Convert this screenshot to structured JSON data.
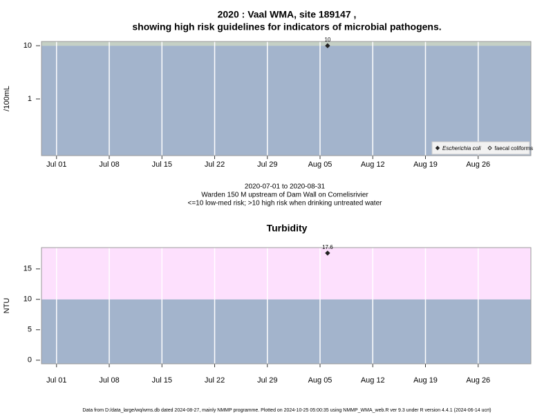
{
  "chart_data": [
    {
      "type": "scatter",
      "title": [
        "2020 : Vaal WMA, site 189147 ,",
        "showing high risk guidelines for indicators of microbial pathogens."
      ],
      "ylabel": "/100mL",
      "ylog": true,
      "ylim": [
        0.086,
        12
      ],
      "yticks": [
        1,
        10
      ],
      "xlim": [
        "2020-06-29",
        "2020-09-02"
      ],
      "xticks": [
        {
          "value": "2020-07-01",
          "label": "Jul 01"
        },
        {
          "value": "2020-07-08",
          "label": "Jul 08"
        },
        {
          "value": "2020-07-15",
          "label": "Jul 15"
        },
        {
          "value": "2020-07-22",
          "label": "Jul 22"
        },
        {
          "value": "2020-07-29",
          "label": "Jul 29"
        },
        {
          "value": "2020-08-05",
          "label": "Aug 05"
        },
        {
          "value": "2020-08-12",
          "label": "Aug 12"
        },
        {
          "value": "2020-08-19",
          "label": "Aug 19"
        },
        {
          "value": "2020-08-26",
          "label": "Aug 26"
        }
      ],
      "threshold": 10,
      "band_colors": [
        "#a3b4cc",
        "#c5d0c5"
      ],
      "grid": true,
      "legend": "bottom-right",
      "x": [
        "2020-08-06"
      ],
      "series": [
        {
          "name": "Escherichia coli",
          "color": "#222222",
          "marker": "filled",
          "values": [
            10
          ]
        },
        {
          "name": "faecal coliforms",
          "color": "#222222",
          "marker": "open",
          "values": [
            null
          ]
        }
      ],
      "caption": [
        "2020-07-01 to 2020-08-31",
        "Warden 150 M upstream of Dam Wall on Cornelisrivier",
        "<=10 low-med risk; >10 high risk when drinking untreated water"
      ]
    },
    {
      "type": "scatter",
      "title": [
        "Turbidity"
      ],
      "ylabel": "NTU",
      "ylog": false,
      "ylim": [
        -0.6,
        18.5
      ],
      "yticks": [
        0,
        5,
        10,
        15
      ],
      "xlim": [
        "2020-06-29",
        "2020-09-02"
      ],
      "xticks": [
        {
          "value": "2020-07-01",
          "label": "Jul 01"
        },
        {
          "value": "2020-07-08",
          "label": "Jul 08"
        },
        {
          "value": "2020-07-15",
          "label": "Jul 15"
        },
        {
          "value": "2020-07-22",
          "label": "Jul 22"
        },
        {
          "value": "2020-07-29",
          "label": "Jul 29"
        },
        {
          "value": "2020-08-05",
          "label": "Aug 05"
        },
        {
          "value": "2020-08-12",
          "label": "Aug 12"
        },
        {
          "value": "2020-08-19",
          "label": "Aug 19"
        },
        {
          "value": "2020-08-26",
          "label": "Aug 26"
        }
      ],
      "threshold": 10,
      "band_colors": [
        "#a3b4cc",
        "#fde0fd"
      ],
      "grid": true,
      "x": [
        "2020-08-06"
      ],
      "color": "#222222",
      "values": [
        17.6
      ]
    }
  ],
  "footer": "Data from D:/data_large/wq/wms.db dated 2024-08-27, mainly NMMP programme. Plotted on 2024-10-25 05:00:35 using NMMP_WMA_web.R ver 9.3 under R version 4.4.1 (2024-06-14 ucrt)"
}
